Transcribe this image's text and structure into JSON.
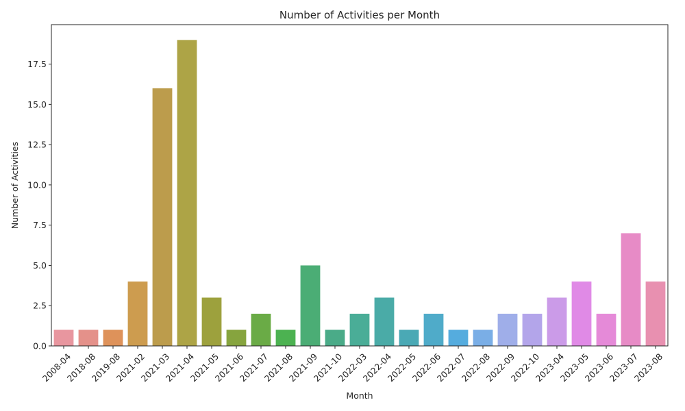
{
  "chart_data": {
    "type": "bar",
    "title": "Number of Activities per Month",
    "xlabel": "Month",
    "ylabel": "Number of Activities",
    "categories": [
      "2008-04",
      "2018-08",
      "2019-08",
      "2021-02",
      "2021-03",
      "2021-04",
      "2021-05",
      "2021-06",
      "2021-07",
      "2021-08",
      "2021-09",
      "2021-10",
      "2022-03",
      "2022-04",
      "2022-05",
      "2022-06",
      "2022-07",
      "2022-08",
      "2022-09",
      "2022-10",
      "2023-04",
      "2023-05",
      "2023-06",
      "2023-07",
      "2023-08"
    ],
    "values": [
      1,
      1,
      1,
      4,
      16,
      19,
      3,
      1,
      2,
      1,
      5,
      1,
      2,
      3,
      1,
      2,
      1,
      1,
      2,
      2,
      3,
      4,
      2,
      7,
      4
    ],
    "colors": [
      "#e8969f",
      "#e4918a",
      "#de925a",
      "#cd9c4f",
      "#bc9c4c",
      "#ada446",
      "#9da13d",
      "#86a43e",
      "#6aab46",
      "#4cb251",
      "#4bad75",
      "#4aab88",
      "#4aad97",
      "#4aaba7",
      "#4aa9b5",
      "#4fabc9",
      "#55acde",
      "#7aaee6",
      "#9faee9",
      "#b3a5ea",
      "#cb9be8",
      "#e08ae6",
      "#e58ad8",
      "#e78bc6",
      "#e890b0"
    ],
    "ylim": [
      0,
      19.95
    ],
    "yticks": [
      "0.0",
      "2.5",
      "5.0",
      "7.5",
      "10.0",
      "12.5",
      "15.0",
      "17.5"
    ],
    "ytick_values": [
      0,
      2.5,
      5,
      7.5,
      10,
      12.5,
      15,
      17.5
    ],
    "grid": false,
    "legend": "none"
  }
}
